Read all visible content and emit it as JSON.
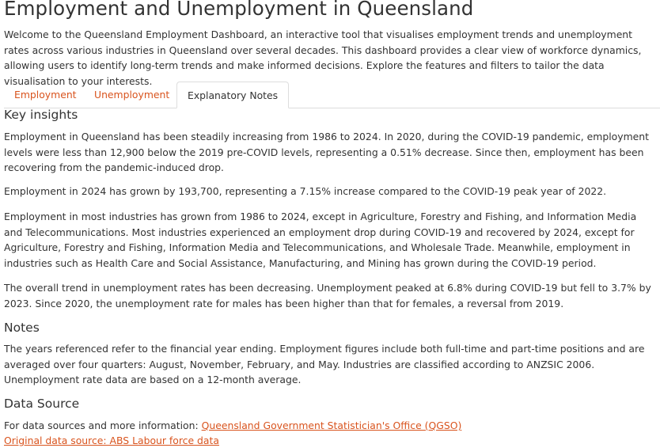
{
  "page": {
    "title": "Employment and Unemployment in Queensland",
    "intro": "Welcome to the Queensland Employment Dashboard, an interactive tool that visualises employment trends and unemployment rates across various industries in Queensland over several decades. This dashboard provides a clear view of workforce dynamics, allowing users to identify long-term trends and make informed decisions. Explore the features and filters to tailor the data visualisation to your interests."
  },
  "tabs": [
    {
      "label": "Employment",
      "active": false
    },
    {
      "label": "Unemployment",
      "active": false
    },
    {
      "label": "Explanatory Notes",
      "active": true
    }
  ],
  "key_insights": {
    "heading": "Key insights",
    "paragraphs": [
      "Employment in Queensland has been steadily increasing from 1986 to 2024. In 2020, during the COVID-19 pandemic, employment levels were less than 12,900 below the 2019 pre-COVID levels, representing a 0.51% decrease. Since then, employment has been recovering from the pandemic-induced drop.",
      "Employment in 2024 has grown by 193,700, representing a 7.15% increase compared to the COVID-19 peak year of 2022.",
      "Employment in most industries has grown from 1986 to 2024, except in Agriculture, Forestry and Fishing, and Information Media and Telecommunications. Most industries experienced an employment drop during COVID-19 and recovered by 2024, except for Agriculture, Forestry and Fishing, Information Media and Telecommunications, and Wholesale Trade. Meanwhile, employment in industries such as Health Care and Social Assistance, Manufacturing, and Mining has grown during the COVID-19 period.",
      "The overall trend in unemployment rates has been decreasing. Unemployment peaked at 6.8% during COVID-19 but fell to 3.7% by 2023. Since 2020, the unemployment rate for males has been higher than that for females, a reversal from 2019."
    ]
  },
  "notes": {
    "heading": "Notes",
    "text": "The years referenced refer to the financial year ending. Employment figures include both full-time and part-time positions and are averaged over four quarters: August, November, February, and May. Industries are classified according to ANZSIC 2006. Unemployment rate data are based on a 12-month average."
  },
  "data_source": {
    "heading": "Data Source",
    "prefix": "For data sources and more information: ",
    "qgso_link": "Queensland Government Statistician's Office (QGSO)",
    "abs_link": "Original data source: ABS Labour force data"
  },
  "colors": {
    "accent": "#d9541e",
    "text": "#333333",
    "border": "#dddddd"
  }
}
